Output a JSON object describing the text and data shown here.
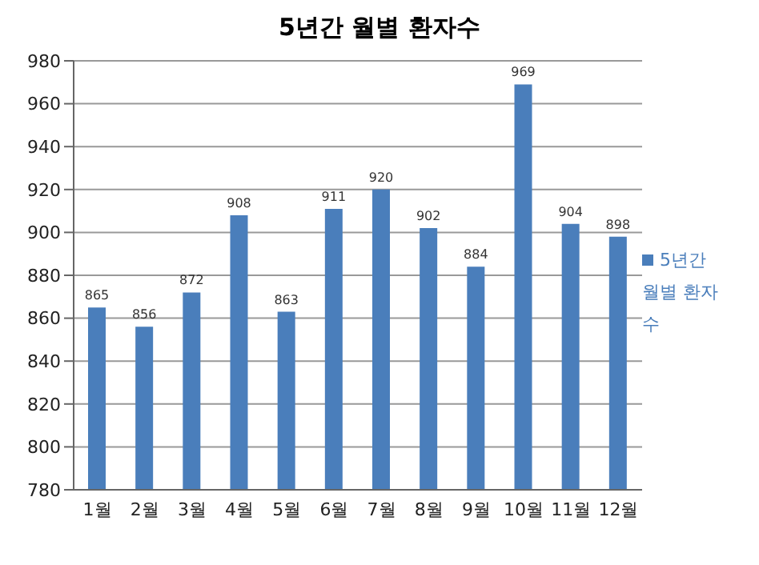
{
  "chart_data": {
    "type": "bar",
    "title": "5년간 월별 환자수",
    "categories": [
      "1월",
      "2월",
      "3월",
      "4월",
      "5월",
      "6월",
      "7월",
      "8월",
      "9월",
      "10월",
      "11월",
      "12월"
    ],
    "series": [
      {
        "name": "5년간 월별 환자수",
        "color": "#4a7ebb",
        "values": [
          865,
          856,
          872,
          908,
          863,
          911,
          920,
          902,
          884,
          969,
          904,
          898
        ]
      }
    ],
    "ylim": [
      780,
      980
    ],
    "yticks": [
      780,
      800,
      820,
      840,
      860,
      880,
      900,
      920,
      940,
      960,
      980
    ],
    "grid": "y",
    "legend": "right",
    "data_labels": true
  }
}
